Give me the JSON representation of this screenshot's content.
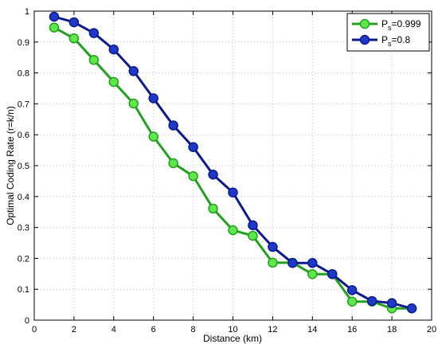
{
  "chart_data": {
    "type": "line",
    "xlabel": "Distance (km)",
    "ylabel": "Optimal Coding Rate (r=k/n)",
    "xlim": [
      0,
      20
    ],
    "ylim": [
      0,
      1
    ],
    "xticks": [
      0,
      2,
      4,
      6,
      8,
      10,
      12,
      14,
      16,
      18,
      20
    ],
    "yticks": [
      0,
      0.1,
      0.2,
      0.3,
      0.4,
      0.5,
      0.6,
      0.7,
      0.8,
      0.9,
      1
    ],
    "xtick_labels": [
      "0",
      "2",
      "4",
      "6",
      "8",
      "10",
      "12",
      "14",
      "16",
      "18",
      "20"
    ],
    "ytick_labels": [
      "0",
      "0.1",
      "0.2",
      "0.3",
      "0.4",
      "0.5",
      "0.6",
      "0.7",
      "0.8",
      "0.9",
      "1"
    ],
    "grid": true,
    "legend_position": "top-right",
    "x": [
      1,
      2,
      3,
      4,
      5,
      6,
      7,
      8,
      9,
      10,
      11,
      12,
      13,
      14,
      15,
      16,
      17,
      18,
      19
    ],
    "series": [
      {
        "name_main": "P",
        "name_sub": "s",
        "name_rest": "=0.999",
        "color": "#22a01e",
        "marker_fill": "#5ee84a",
        "values": [
          0.947,
          0.912,
          0.842,
          0.771,
          0.701,
          0.594,
          0.508,
          0.466,
          0.361,
          0.291,
          0.273,
          0.186,
          0.186,
          0.149,
          0.149,
          0.06,
          0.06,
          0.038,
          0.038
        ]
      },
      {
        "name_main": "P",
        "name_sub": "s",
        "name_rest": "=0.8",
        "color": "#0c1a8e",
        "marker_fill": "#1e38c8",
        "values": [
          0.982,
          0.964,
          0.929,
          0.876,
          0.806,
          0.718,
          0.63,
          0.56,
          0.471,
          0.413,
          0.307,
          0.237,
          0.185,
          0.185,
          0.149,
          0.097,
          0.062,
          0.055,
          0.038
        ]
      }
    ]
  }
}
